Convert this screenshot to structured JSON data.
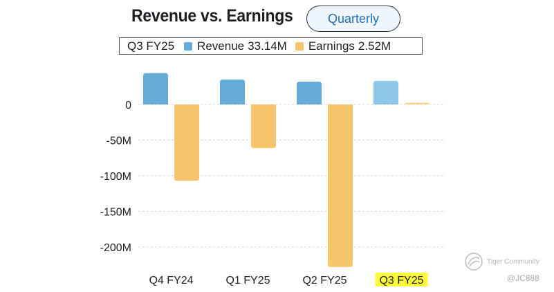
{
  "header": {
    "title": "Revenue vs. Earnings",
    "period_toggle": "Quarterly"
  },
  "legend": {
    "period": "Q3 FY25",
    "series": [
      {
        "name": "Revenue",
        "value": "33.14M",
        "color": "#65acd9"
      },
      {
        "name": "Earnings",
        "value": "2.52M",
        "color": "#f6c46a"
      }
    ]
  },
  "watermark": {
    "brand": "Tiger Community",
    "handle": "@JC888"
  },
  "chart_data": {
    "type": "bar",
    "categories": [
      "Q4 FY24",
      "Q1 FY25",
      "Q2 FY25",
      "Q3 FY25"
    ],
    "series": [
      {
        "name": "Revenue",
        "values": [
          44,
          35,
          32,
          33.14
        ],
        "unit": "M"
      },
      {
        "name": "Earnings",
        "values": [
          -107,
          -61,
          -228,
          2.52
        ],
        "unit": "M"
      }
    ],
    "highlighted_category": "Q3 FY25",
    "y_ticks": [
      0,
      -50,
      -100,
      -150,
      -200
    ],
    "y_tick_labels": [
      "0",
      "-50M",
      "-100M",
      "-150M",
      "-200M"
    ],
    "ylim": [
      -230,
      45
    ],
    "grid": true,
    "colors": {
      "revenue": "#65acd9",
      "revenue_highlight": "#8ec6ea",
      "earnings": "#f6c46a",
      "earnings_highlight": "#f9d68f",
      "highlight_label_bg": "#fdfb3a"
    }
  }
}
